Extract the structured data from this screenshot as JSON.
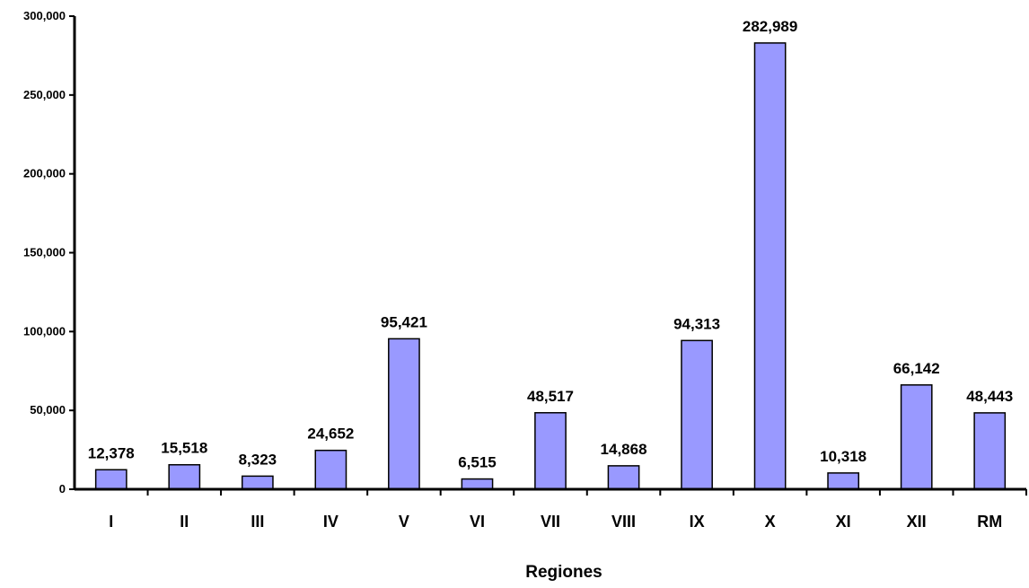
{
  "chart_data": {
    "type": "bar",
    "title": "",
    "xlabel": "Regiones",
    "ylabel": "",
    "categories": [
      "I",
      "II",
      "III",
      "IV",
      "V",
      "VI",
      "VII",
      "VIII",
      "IX",
      "X",
      "XI",
      "XII",
      "RM"
    ],
    "values": [
      12378,
      15518,
      8323,
      24652,
      95421,
      6515,
      48517,
      14868,
      94313,
      282989,
      10318,
      66142,
      48443
    ],
    "data_labels": [
      "12,378",
      "15,518",
      "8,323",
      "24,652",
      "95,421",
      "6,515",
      "48,517",
      "14,868",
      "94,313",
      "282,989",
      "10,318",
      "66,142",
      "48,443"
    ],
    "ylim": [
      0,
      300000
    ],
    "yticks": [
      0,
      50000,
      100000,
      150000,
      200000,
      250000,
      300000
    ],
    "ytick_labels": [
      "0",
      "50,000",
      "100,000",
      "150,000",
      "200,000",
      "250,000",
      "300,000"
    ],
    "grid": false,
    "legend": "none",
    "bar_color": "#9999FF",
    "bar_edge_color": "#000000"
  }
}
